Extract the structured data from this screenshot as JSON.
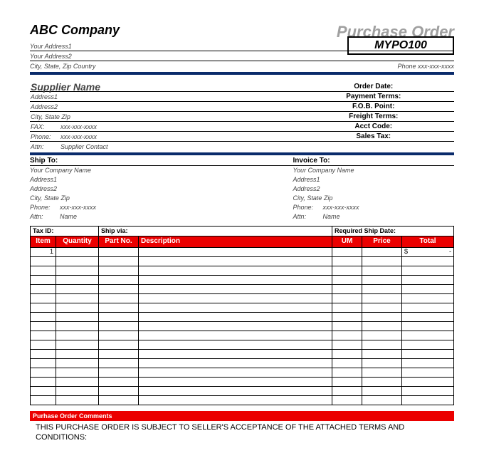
{
  "header": {
    "company_name": "ABC Company",
    "po_title": "Purchase Order",
    "po_number": "MYPO100",
    "address1": "Your Address1",
    "address2": "Your Address2",
    "city_line": "City, State, Zip Country",
    "phone": "Phone xxx-xxx-xxxx"
  },
  "supplier": {
    "name": "Supplier Name",
    "address1": "Address1",
    "address2": "Address2",
    "city_line": "City, State Zip",
    "fax_label": "FAX:",
    "fax": "xxx-xxx-xxxx",
    "phone_label": "Phone:",
    "phone": "xxx-xxx-xxxx",
    "attn_label": "Attn:",
    "attn": "Supplier Contact"
  },
  "order_fields": {
    "order_date": "Order Date:",
    "payment_terms": "Payment Terms:",
    "fob_point": "F.O.B. Point:",
    "freight_terms": "Freight Terms:",
    "acct_code": "Acct Code:",
    "sales_tax": "Sales Tax:"
  },
  "ship_to": {
    "heading": "Ship To:",
    "company": "Your Company Name",
    "address1": "Address1",
    "address2": "Address2",
    "city_line": "City, State Zip",
    "phone_label": "Phone:",
    "phone": "xxx-xxx-xxxx",
    "attn_label": "Attn:",
    "attn": "Name"
  },
  "invoice_to": {
    "heading": "Invoice To:",
    "company": "Your Company Name",
    "address1": "Address1",
    "address2": "Address2",
    "city_line": "City, State Zip",
    "phone_label": "Phone:",
    "phone": "xxx-xxx-xxxx",
    "attn_label": "Attn:",
    "attn": "Name"
  },
  "items": {
    "tax_id_label": "Tax ID:",
    "ship_via_label": "Ship via:",
    "req_ship_label": "Required Ship Date:",
    "col_item": "Item",
    "col_qty": "Quantity",
    "col_part": "Part No.",
    "col_desc": "Description",
    "col_um": "UM",
    "col_price": "Price",
    "col_total": "Total",
    "first_item": "1",
    "first_total_sym": "$",
    "first_total_val": "-",
    "blank_row_count": 16
  },
  "comments": {
    "bar_label": "Purhase Order Comments",
    "terms_text": "THIS PURCHASE ORDER IS SUBJECT TO SELLER'S ACCEPTANCE OF THE ATTACHED TERMS AND CONDITIONS:"
  },
  "colors": {
    "red": "#eb0000",
    "navy": "#0a2b6b",
    "grey_title": "#a0a0a0"
  }
}
